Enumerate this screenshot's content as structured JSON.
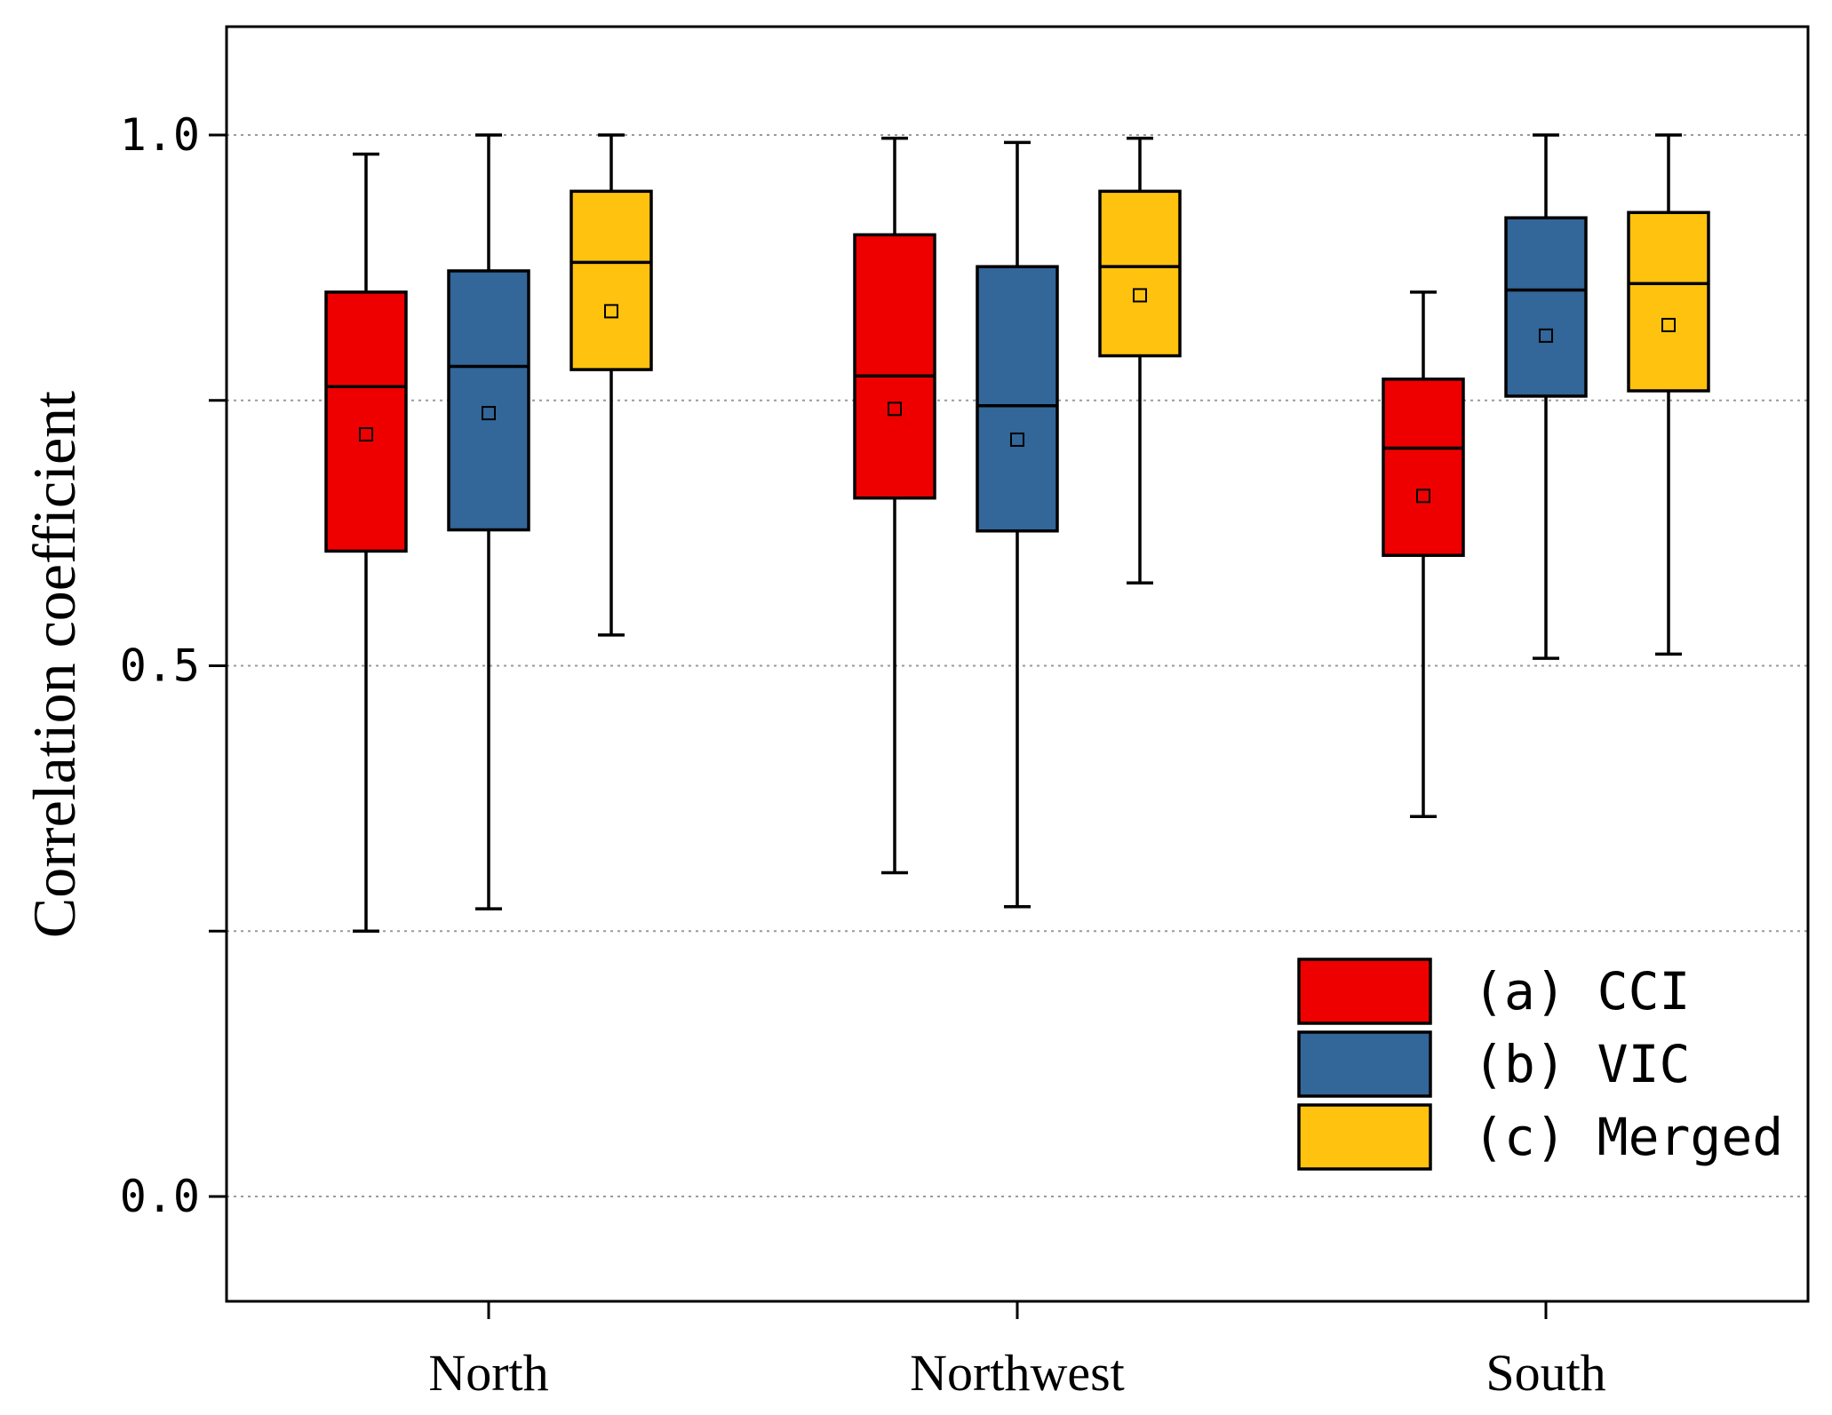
{
  "chart_data": {
    "type": "boxplot",
    "title": "",
    "xlabel": "",
    "ylabel": "Correlation coefficient",
    "ylim": [
      -0.1,
      1.1
    ],
    "y_ticks": [
      {
        "value": 0.0,
        "label": "0.0"
      },
      {
        "value": 0.25,
        "label": ""
      },
      {
        "value": 0.5,
        "label": "0.5"
      },
      {
        "value": 0.75,
        "label": ""
      },
      {
        "value": 1.0,
        "label": "1.0"
      }
    ],
    "grid": true,
    "legend_position": "bottom-right",
    "categories": [
      "North",
      "Northwest",
      "South"
    ],
    "series": [
      {
        "name": "(a) CCI",
        "color": "#ee0000",
        "boxes": [
          {
            "min": 0.25,
            "q1": 0.608,
            "median": 0.763,
            "q3": 0.852,
            "max": 0.982,
            "mean": 0.718
          },
          {
            "min": 0.305,
            "q1": 0.658,
            "median": 0.773,
            "q3": 0.906,
            "max": 0.997,
            "mean": 0.742
          },
          {
            "min": 0.358,
            "q1": 0.604,
            "median": 0.705,
            "q3": 0.77,
            "max": 0.852,
            "mean": 0.66
          }
        ]
      },
      {
        "name": "(b) VIC",
        "color": "#336699",
        "boxes": [
          {
            "min": 0.271,
            "q1": 0.628,
            "median": 0.782,
            "q3": 0.872,
            "max": 1.0,
            "mean": 0.738
          },
          {
            "min": 0.273,
            "q1": 0.627,
            "median": 0.745,
            "q3": 0.876,
            "max": 0.993,
            "mean": 0.713
          },
          {
            "min": 0.507,
            "q1": 0.754,
            "median": 0.854,
            "q3": 0.922,
            "max": 1.0,
            "mean": 0.811
          }
        ]
      },
      {
        "name": "(c) Merged",
        "color": "#ffc20e",
        "boxes": [
          {
            "min": 0.529,
            "q1": 0.779,
            "median": 0.88,
            "q3": 0.947,
            "max": 1.0,
            "mean": 0.834
          },
          {
            "min": 0.578,
            "q1": 0.792,
            "median": 0.876,
            "q3": 0.947,
            "max": 0.997,
            "mean": 0.849
          },
          {
            "min": 0.511,
            "q1": 0.759,
            "median": 0.86,
            "q3": 0.927,
            "max": 1.0,
            "mean": 0.821
          }
        ]
      }
    ]
  }
}
